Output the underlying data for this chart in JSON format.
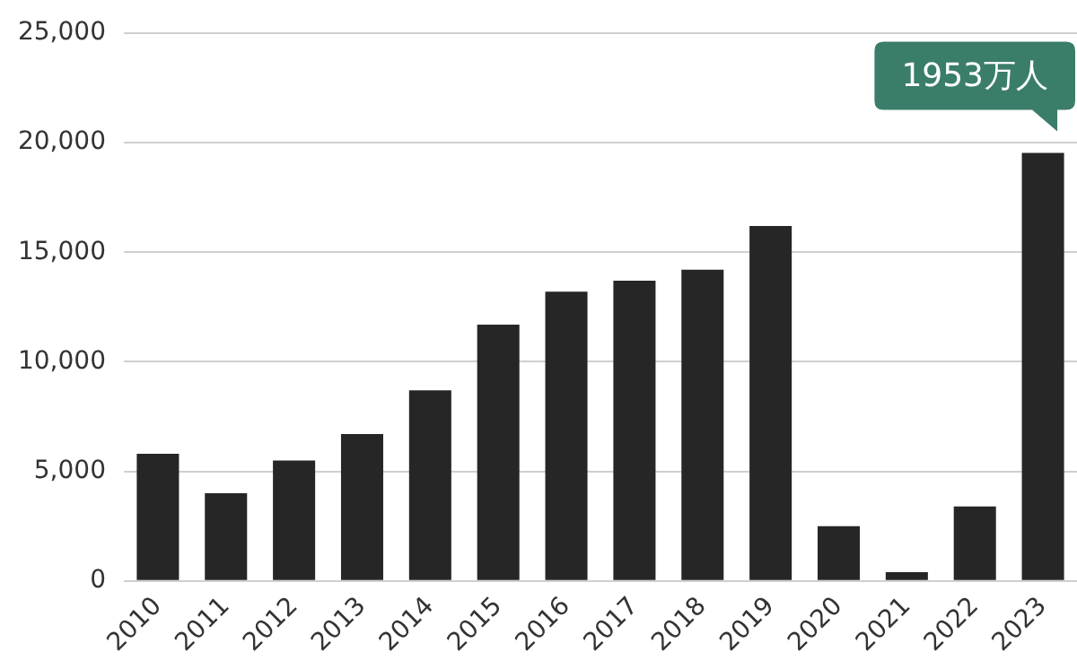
{
  "chart_data": {
    "type": "bar",
    "categories": [
      "2010",
      "2011",
      "2012",
      "2013",
      "2014",
      "2015",
      "2016",
      "2017",
      "2018",
      "2019",
      "2020",
      "2021",
      "2022",
      "2023"
    ],
    "values": [
      5800,
      4000,
      5500,
      6700,
      8700,
      11700,
      13200,
      13700,
      14200,
      16200,
      2500,
      400,
      3400,
      19530
    ],
    "color": "#262626",
    "ylim": [
      0,
      25000
    ],
    "yticks": [
      {
        "value": 0,
        "label": "0"
      },
      {
        "value": 5000,
        "label": "5,000"
      },
      {
        "value": 10000,
        "label": "10,000"
      },
      {
        "value": 15000,
        "label": "15,000"
      },
      {
        "value": 20000,
        "label": "20,000"
      },
      {
        "value": 25000,
        "label": "25,000"
      }
    ],
    "grid": "y",
    "annotations": [
      {
        "text": "1953万人",
        "x": "2023",
        "y": 19530
      }
    ]
  }
}
